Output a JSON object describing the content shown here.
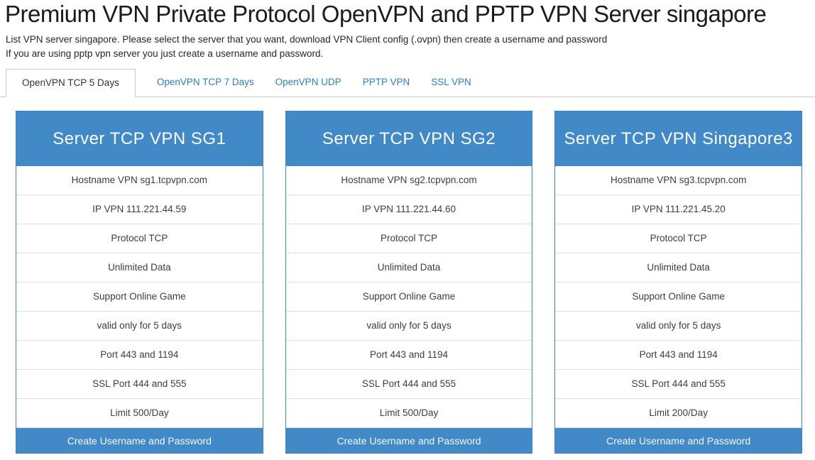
{
  "page": {
    "title": "Premium VPN Private Protocol OpenVPN and PPTP VPN Server singapore",
    "description_line1": "List VPN server singapore. Please select the server that you want, download VPN Client config (.ovpn) then create a username and password",
    "description_line2": "If you are using pptp vpn server you just create a username and password."
  },
  "tabs": [
    {
      "label": "OpenVPN TCP 5 Days",
      "active": true
    },
    {
      "label": "OpenVPN TCP 7 Days",
      "active": false
    },
    {
      "label": "OpenVPN UDP",
      "active": false
    },
    {
      "label": "PPTP VPN",
      "active": false
    },
    {
      "label": "SSL VPN",
      "active": false
    }
  ],
  "colors": {
    "accent_blue": "#4189c7",
    "card_border_blue": "#3d84c4",
    "tab_link_blue": "#2d7fc1",
    "row_separator": "#dddddd",
    "tab_border": "#cacaca"
  },
  "servers": [
    {
      "title": "Server TCP VPN SG1",
      "rows": [
        "Hostname VPN sg1.tcpvpn.com",
        "IP VPN 111.221.44.59",
        "Protocol TCP",
        "Unlimited Data",
        "Support Online Game",
        "valid only for 5 days",
        "Port 443 and 1194",
        "SSL Port 444 and 555",
        "Limit 500/Day"
      ],
      "button_label": "Create Username and Password"
    },
    {
      "title": "Server TCP VPN SG2",
      "rows": [
        "Hostname VPN sg2.tcpvpn.com",
        "IP VPN 111.221.44.60",
        "Protocol TCP",
        "Unlimited Data",
        "Support Online Game",
        "valid only for 5 days",
        "Port 443 and 1194",
        "SSL Port 444 and 555",
        "Limit 500/Day"
      ],
      "button_label": "Create Username and Password"
    },
    {
      "title": "Server TCP VPN Singapore3",
      "rows": [
        "Hostname VPN sg3.tcpvpn.com",
        "IP VPN 111.221.45.20",
        "Protocol TCP",
        "Unlimited Data",
        "Support Online Game",
        "valid only for 5 days",
        "Port 443 and 1194",
        "SSL Port 444 and 555",
        "Limit 200/Day"
      ],
      "button_label": "Create Username and Password"
    }
  ]
}
